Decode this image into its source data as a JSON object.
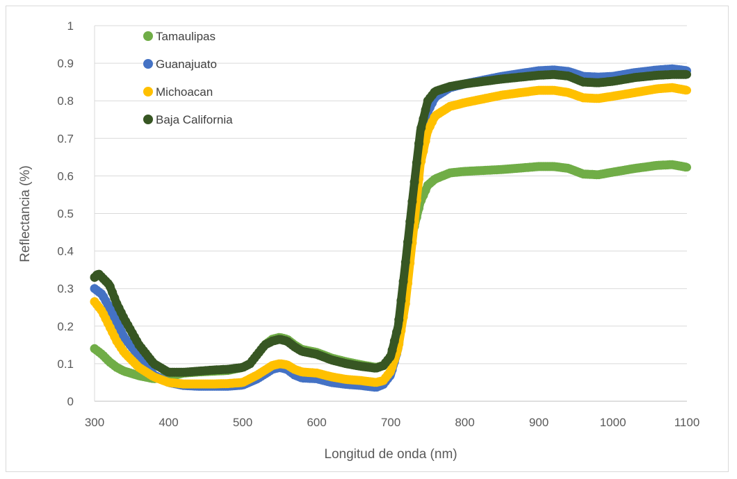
{
  "chart_data": {
    "type": "scatter",
    "title": "",
    "xlabel": "Longitud de onda (nm)",
    "ylabel": "Reflectancia (%)",
    "xlim": [
      300,
      1100
    ],
    "ylim": [
      0,
      1
    ],
    "xticks": [
      "300",
      "400",
      "500",
      "600",
      "700",
      "800",
      "900",
      "1000",
      "1100"
    ],
    "yticks": [
      "0",
      "0.1",
      "0.2",
      "0.3",
      "0.4",
      "0.5",
      "0.6",
      "0.7",
      "0.8",
      "0.9",
      "1"
    ],
    "grid": true,
    "legend_position": "top-left",
    "series": [
      {
        "name": "Tamaulipas",
        "color": "#70ad47",
        "points": [
          [
            300,
            0.14
          ],
          [
            310,
            0.125
          ],
          [
            320,
            0.105
          ],
          [
            330,
            0.09
          ],
          [
            340,
            0.08
          ],
          [
            360,
            0.068
          ],
          [
            380,
            0.06
          ],
          [
            400,
            0.065
          ],
          [
            420,
            0.075
          ],
          [
            440,
            0.078
          ],
          [
            460,
            0.08
          ],
          [
            480,
            0.082
          ],
          [
            500,
            0.09
          ],
          [
            510,
            0.1
          ],
          [
            520,
            0.125
          ],
          [
            530,
            0.15
          ],
          [
            540,
            0.165
          ],
          [
            550,
            0.17
          ],
          [
            560,
            0.165
          ],
          [
            570,
            0.15
          ],
          [
            580,
            0.138
          ],
          [
            600,
            0.13
          ],
          [
            620,
            0.115
          ],
          [
            640,
            0.105
          ],
          [
            660,
            0.097
          ],
          [
            680,
            0.09
          ],
          [
            690,
            0.095
          ],
          [
            700,
            0.11
          ],
          [
            710,
            0.17
          ],
          [
            720,
            0.3
          ],
          [
            730,
            0.45
          ],
          [
            740,
            0.53
          ],
          [
            750,
            0.575
          ],
          [
            760,
            0.592
          ],
          [
            780,
            0.608
          ],
          [
            800,
            0.612
          ],
          [
            850,
            0.617
          ],
          [
            900,
            0.625
          ],
          [
            920,
            0.625
          ],
          [
            940,
            0.62
          ],
          [
            960,
            0.605
          ],
          [
            980,
            0.603
          ],
          [
            1000,
            0.61
          ],
          [
            1030,
            0.62
          ],
          [
            1060,
            0.628
          ],
          [
            1080,
            0.63
          ],
          [
            1100,
            0.623
          ]
        ]
      },
      {
        "name": "Guanajuato",
        "color": "#4472c4",
        "points": [
          [
            300,
            0.3
          ],
          [
            310,
            0.285
          ],
          [
            320,
            0.25
          ],
          [
            330,
            0.21
          ],
          [
            340,
            0.17
          ],
          [
            360,
            0.12
          ],
          [
            380,
            0.07
          ],
          [
            400,
            0.05
          ],
          [
            420,
            0.042
          ],
          [
            440,
            0.04
          ],
          [
            460,
            0.04
          ],
          [
            480,
            0.04
          ],
          [
            500,
            0.043
          ],
          [
            520,
            0.06
          ],
          [
            540,
            0.085
          ],
          [
            550,
            0.09
          ],
          [
            560,
            0.085
          ],
          [
            570,
            0.07
          ],
          [
            580,
            0.062
          ],
          [
            600,
            0.06
          ],
          [
            620,
            0.05
          ],
          [
            640,
            0.045
          ],
          [
            660,
            0.042
          ],
          [
            680,
            0.037
          ],
          [
            690,
            0.045
          ],
          [
            700,
            0.07
          ],
          [
            710,
            0.14
          ],
          [
            720,
            0.3
          ],
          [
            730,
            0.5
          ],
          [
            740,
            0.68
          ],
          [
            750,
            0.77
          ],
          [
            760,
            0.81
          ],
          [
            780,
            0.835
          ],
          [
            800,
            0.845
          ],
          [
            850,
            0.865
          ],
          [
            900,
            0.88
          ],
          [
            920,
            0.882
          ],
          [
            940,
            0.878
          ],
          [
            960,
            0.865
          ],
          [
            980,
            0.863
          ],
          [
            1000,
            0.865
          ],
          [
            1030,
            0.875
          ],
          [
            1060,
            0.882
          ],
          [
            1080,
            0.885
          ],
          [
            1100,
            0.88
          ]
        ]
      },
      {
        "name": "Michoacan",
        "color": "#ffc000",
        "points": [
          [
            300,
            0.265
          ],
          [
            310,
            0.24
          ],
          [
            320,
            0.2
          ],
          [
            330,
            0.16
          ],
          [
            340,
            0.13
          ],
          [
            360,
            0.09
          ],
          [
            380,
            0.065
          ],
          [
            400,
            0.05
          ],
          [
            420,
            0.046
          ],
          [
            440,
            0.046
          ],
          [
            460,
            0.046
          ],
          [
            480,
            0.047
          ],
          [
            500,
            0.05
          ],
          [
            520,
            0.07
          ],
          [
            540,
            0.095
          ],
          [
            550,
            0.1
          ],
          [
            560,
            0.097
          ],
          [
            570,
            0.085
          ],
          [
            580,
            0.078
          ],
          [
            600,
            0.075
          ],
          [
            620,
            0.065
          ],
          [
            640,
            0.058
          ],
          [
            660,
            0.055
          ],
          [
            680,
            0.05
          ],
          [
            690,
            0.055
          ],
          [
            700,
            0.08
          ],
          [
            710,
            0.14
          ],
          [
            720,
            0.26
          ],
          [
            730,
            0.44
          ],
          [
            740,
            0.63
          ],
          [
            750,
            0.72
          ],
          [
            760,
            0.76
          ],
          [
            780,
            0.785
          ],
          [
            800,
            0.795
          ],
          [
            850,
            0.815
          ],
          [
            900,
            0.828
          ],
          [
            920,
            0.828
          ],
          [
            940,
            0.822
          ],
          [
            960,
            0.808
          ],
          [
            980,
            0.806
          ],
          [
            1000,
            0.812
          ],
          [
            1030,
            0.822
          ],
          [
            1060,
            0.832
          ],
          [
            1080,
            0.835
          ],
          [
            1100,
            0.828
          ]
        ]
      },
      {
        "name": "Baja California",
        "color": "#375623",
        "points": [
          [
            300,
            0.33
          ],
          [
            305,
            0.34
          ],
          [
            310,
            0.33
          ],
          [
            320,
            0.31
          ],
          [
            330,
            0.26
          ],
          [
            340,
            0.22
          ],
          [
            360,
            0.15
          ],
          [
            380,
            0.1
          ],
          [
            400,
            0.077
          ],
          [
            420,
            0.077
          ],
          [
            440,
            0.08
          ],
          [
            460,
            0.083
          ],
          [
            480,
            0.085
          ],
          [
            500,
            0.09
          ],
          [
            510,
            0.1
          ],
          [
            520,
            0.125
          ],
          [
            530,
            0.15
          ],
          [
            540,
            0.16
          ],
          [
            550,
            0.165
          ],
          [
            560,
            0.16
          ],
          [
            570,
            0.145
          ],
          [
            580,
            0.133
          ],
          [
            600,
            0.125
          ],
          [
            620,
            0.11
          ],
          [
            640,
            0.1
          ],
          [
            660,
            0.093
          ],
          [
            680,
            0.088
          ],
          [
            690,
            0.095
          ],
          [
            700,
            0.12
          ],
          [
            710,
            0.2
          ],
          [
            720,
            0.37
          ],
          [
            730,
            0.55
          ],
          [
            740,
            0.72
          ],
          [
            750,
            0.8
          ],
          [
            760,
            0.825
          ],
          [
            780,
            0.838
          ],
          [
            800,
            0.845
          ],
          [
            850,
            0.858
          ],
          [
            900,
            0.868
          ],
          [
            920,
            0.87
          ],
          [
            940,
            0.866
          ],
          [
            960,
            0.85
          ],
          [
            980,
            0.848
          ],
          [
            1000,
            0.852
          ],
          [
            1030,
            0.862
          ],
          [
            1060,
            0.868
          ],
          [
            1080,
            0.87
          ],
          [
            1100,
            0.87
          ]
        ]
      }
    ]
  }
}
